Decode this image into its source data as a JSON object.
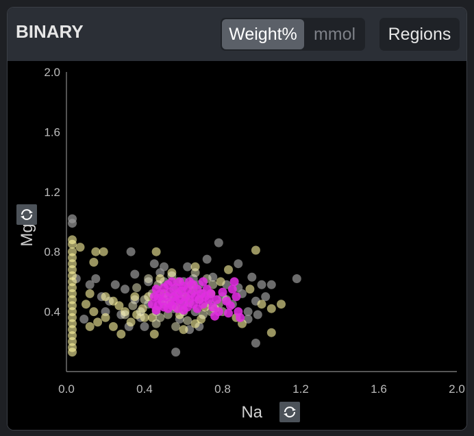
{
  "header": {
    "title": "BINARY",
    "unit_options": [
      "Weight%",
      "mmol"
    ],
    "selected_unit": "Weight%",
    "regions_label": "Regions"
  },
  "colors": {
    "background": "#000000",
    "header": "#2b2f36",
    "gray_points": "#9a9a9a",
    "yellow_points": "#fff6a0",
    "pale_points": "#f4f1c8",
    "magenta_points": "#e02ee0"
  },
  "icons": [
    "swap-axis-icon"
  ],
  "chart_data": {
    "type": "scatter",
    "xlabel": "Na",
    "ylabel": "Mg",
    "xlim": [
      0.0,
      2.0
    ],
    "ylim": [
      0.0,
      2.0
    ],
    "xticks": [
      "0.0",
      "0.4",
      "0.8",
      "1.2",
      "1.6",
      "2.0"
    ],
    "yticks": [
      "0.4",
      "0.8",
      "1.2",
      "1.6",
      "2.0"
    ],
    "grid": false,
    "series": [
      {
        "color": "#9a9a9a",
        "opacity": 0.7,
        "points": [
          [
            0.03,
            1.02
          ],
          [
            0.03,
            0.99
          ],
          [
            0.05,
            0.62
          ],
          [
            0.12,
            0.58
          ],
          [
            0.18,
            0.5
          ],
          [
            0.22,
            0.47
          ],
          [
            0.25,
            0.58
          ],
          [
            0.3,
            0.55
          ],
          [
            0.33,
            0.8
          ],
          [
            0.35,
            0.65
          ],
          [
            0.28,
            0.38
          ],
          [
            0.32,
            0.3
          ],
          [
            0.38,
            0.36
          ],
          [
            0.42,
            0.6
          ],
          [
            0.45,
            0.72
          ],
          [
            0.48,
            0.66
          ],
          [
            0.5,
            0.6
          ],
          [
            0.52,
            0.5
          ],
          [
            0.55,
            0.55
          ],
          [
            0.58,
            0.35
          ],
          [
            0.6,
            0.45
          ],
          [
            0.62,
            0.7
          ],
          [
            0.65,
            0.62
          ],
          [
            0.68,
            0.58
          ],
          [
            0.7,
            0.52
          ],
          [
            0.72,
            0.75
          ],
          [
            0.75,
            0.63
          ],
          [
            0.78,
            0.86
          ],
          [
            0.8,
            0.5
          ],
          [
            0.82,
            0.58
          ],
          [
            0.85,
            0.45
          ],
          [
            0.88,
            0.56
          ],
          [
            0.9,
            0.52
          ],
          [
            0.93,
            0.4
          ],
          [
            0.95,
            0.63
          ],
          [
            0.97,
            0.47
          ],
          [
            0.98,
            0.38
          ],
          [
            1.0,
            0.58
          ],
          [
            1.02,
            0.5
          ],
          [
            1.05,
            0.58
          ],
          [
            1.18,
            0.62
          ],
          [
            0.56,
            0.13
          ],
          [
            0.97,
            0.19
          ],
          [
            0.63,
            0.28
          ],
          [
            0.68,
            0.3
          ],
          [
            0.4,
            0.3
          ],
          [
            0.5,
            0.48
          ],
          [
            0.46,
            0.4
          ],
          [
            0.35,
            0.48
          ],
          [
            0.6,
            0.6
          ],
          [
            0.15,
            0.62
          ],
          [
            0.42,
            0.45
          ],
          [
            0.66,
            0.4
          ],
          [
            0.88,
            0.72
          ],
          [
            0.93,
            0.35
          ],
          [
            0.74,
            0.45
          ],
          [
            0.55,
            0.42
          ],
          [
            0.2,
            0.4
          ],
          [
            0.09,
            0.35
          ],
          [
            0.5,
            0.7
          ]
        ]
      },
      {
        "color": "#fff6a0",
        "opacity": 0.6,
        "points": [
          [
            0.03,
            0.88
          ],
          [
            0.03,
            0.85
          ],
          [
            0.03,
            0.8
          ],
          [
            0.03,
            0.76
          ],
          [
            0.03,
            0.72
          ],
          [
            0.03,
            0.68
          ],
          [
            0.03,
            0.64
          ],
          [
            0.03,
            0.6
          ],
          [
            0.03,
            0.56
          ],
          [
            0.03,
            0.52
          ],
          [
            0.03,
            0.48
          ],
          [
            0.03,
            0.44
          ],
          [
            0.03,
            0.4
          ],
          [
            0.03,
            0.36
          ],
          [
            0.03,
            0.32
          ],
          [
            0.03,
            0.28
          ],
          [
            0.03,
            0.24
          ],
          [
            0.03,
            0.2
          ],
          [
            0.03,
            0.16
          ],
          [
            0.03,
            0.13
          ],
          [
            0.07,
            0.83
          ],
          [
            0.15,
            0.8
          ],
          [
            0.19,
            0.8
          ],
          [
            0.14,
            0.73
          ],
          [
            0.1,
            0.45
          ],
          [
            0.12,
            0.52
          ],
          [
            0.14,
            0.4
          ],
          [
            0.16,
            0.33
          ],
          [
            0.2,
            0.36
          ],
          [
            0.24,
            0.47
          ],
          [
            0.27,
            0.44
          ],
          [
            0.3,
            0.4
          ],
          [
            0.33,
            0.33
          ],
          [
            0.36,
            0.38
          ],
          [
            0.39,
            0.42
          ],
          [
            0.42,
            0.5
          ],
          [
            0.44,
            0.36
          ],
          [
            0.46,
            0.8
          ],
          [
            0.48,
            0.62
          ],
          [
            0.5,
            0.52
          ],
          [
            0.52,
            0.46
          ],
          [
            0.54,
            0.66
          ],
          [
            0.56,
            0.43
          ],
          [
            0.58,
            0.38
          ],
          [
            0.61,
            0.5
          ],
          [
            0.64,
            0.58
          ],
          [
            0.66,
            0.7
          ],
          [
            0.69,
            0.35
          ],
          [
            0.71,
            0.43
          ],
          [
            0.74,
            0.52
          ],
          [
            0.76,
            0.42
          ],
          [
            0.79,
            0.6
          ],
          [
            0.83,
            0.68
          ],
          [
            0.87,
            0.36
          ],
          [
            0.9,
            0.32
          ],
          [
            0.94,
            0.55
          ],
          [
            0.97,
            0.81
          ],
          [
            1.0,
            0.45
          ],
          [
            1.05,
            0.42
          ],
          [
            1.1,
            0.45
          ],
          [
            1.05,
            0.26
          ],
          [
            0.28,
            0.25
          ],
          [
            0.45,
            0.25
          ],
          [
            0.35,
            0.5
          ],
          [
            0.6,
            0.28
          ],
          [
            0.66,
            0.32
          ],
          [
            0.4,
            0.36
          ],
          [
            0.24,
            0.3
          ],
          [
            0.2,
            0.5
          ],
          [
            0.12,
            0.3
          ]
        ]
      },
      {
        "color": "#f4f1c8",
        "opacity": 0.5,
        "points": [
          [
            0.3,
            0.38
          ],
          [
            0.34,
            0.44
          ],
          [
            0.38,
            0.4
          ],
          [
            0.4,
            0.48
          ],
          [
            0.44,
            0.52
          ],
          [
            0.47,
            0.58
          ],
          [
            0.5,
            0.45
          ],
          [
            0.52,
            0.38
          ],
          [
            0.55,
            0.5
          ],
          [
            0.57,
            0.6
          ],
          [
            0.6,
            0.4
          ],
          [
            0.63,
            0.46
          ],
          [
            0.65,
            0.54
          ],
          [
            0.68,
            0.48
          ],
          [
            0.7,
            0.38
          ],
          [
            0.72,
            0.62
          ],
          [
            0.75,
            0.58
          ],
          [
            0.78,
            0.45
          ],
          [
            0.8,
            0.4
          ],
          [
            0.46,
            0.32
          ],
          [
            0.56,
            0.3
          ],
          [
            0.62,
            0.34
          ],
          [
            0.42,
            0.62
          ],
          [
            0.54,
            0.64
          ],
          [
            0.66,
            0.66
          ],
          [
            0.36,
            0.56
          ],
          [
            0.48,
            0.36
          ],
          [
            0.58,
            0.52
          ],
          [
            0.74,
            0.4
          ],
          [
            0.82,
            0.48
          ]
        ]
      },
      {
        "color": "#e02ee0",
        "opacity": 0.88,
        "points": [
          [
            0.44,
            0.45
          ],
          [
            0.45,
            0.5
          ],
          [
            0.46,
            0.55
          ],
          [
            0.47,
            0.44
          ],
          [
            0.48,
            0.52
          ],
          [
            0.49,
            0.47
          ],
          [
            0.5,
            0.56
          ],
          [
            0.5,
            0.43
          ],
          [
            0.51,
            0.5
          ],
          [
            0.52,
            0.58
          ],
          [
            0.53,
            0.46
          ],
          [
            0.53,
            0.53
          ],
          [
            0.54,
            0.44
          ],
          [
            0.55,
            0.5
          ],
          [
            0.56,
            0.56
          ],
          [
            0.56,
            0.47
          ],
          [
            0.57,
            0.42
          ],
          [
            0.57,
            0.52
          ],
          [
            0.58,
            0.6
          ],
          [
            0.58,
            0.48
          ],
          [
            0.59,
            0.54
          ],
          [
            0.6,
            0.46
          ],
          [
            0.6,
            0.57
          ],
          [
            0.61,
            0.5
          ],
          [
            0.62,
            0.43
          ],
          [
            0.62,
            0.55
          ],
          [
            0.63,
            0.6
          ],
          [
            0.63,
            0.48
          ],
          [
            0.64,
            0.52
          ],
          [
            0.65,
            0.58
          ],
          [
            0.65,
            0.45
          ],
          [
            0.66,
            0.5
          ],
          [
            0.67,
            0.55
          ],
          [
            0.67,
            0.42
          ],
          [
            0.68,
            0.48
          ],
          [
            0.69,
            0.52
          ],
          [
            0.7,
            0.45
          ],
          [
            0.71,
            0.5
          ],
          [
            0.72,
            0.55
          ],
          [
            0.73,
            0.48
          ],
          [
            0.74,
            0.52
          ],
          [
            0.75,
            0.43
          ],
          [
            0.77,
            0.48
          ],
          [
            0.78,
            0.4
          ],
          [
            0.8,
            0.53
          ],
          [
            0.82,
            0.47
          ],
          [
            0.84,
            0.44
          ],
          [
            0.85,
            0.55
          ],
          [
            0.86,
            0.6
          ],
          [
            0.87,
            0.5
          ],
          [
            0.88,
            0.4
          ],
          [
            0.89,
            0.36
          ],
          [
            0.83,
            0.39
          ],
          [
            0.76,
            0.37
          ],
          [
            0.54,
            0.6
          ],
          [
            0.47,
            0.49
          ],
          [
            0.52,
            0.42
          ],
          [
            0.6,
            0.41
          ],
          [
            0.7,
            0.6
          ],
          [
            0.46,
            0.41
          ]
        ]
      }
    ]
  }
}
